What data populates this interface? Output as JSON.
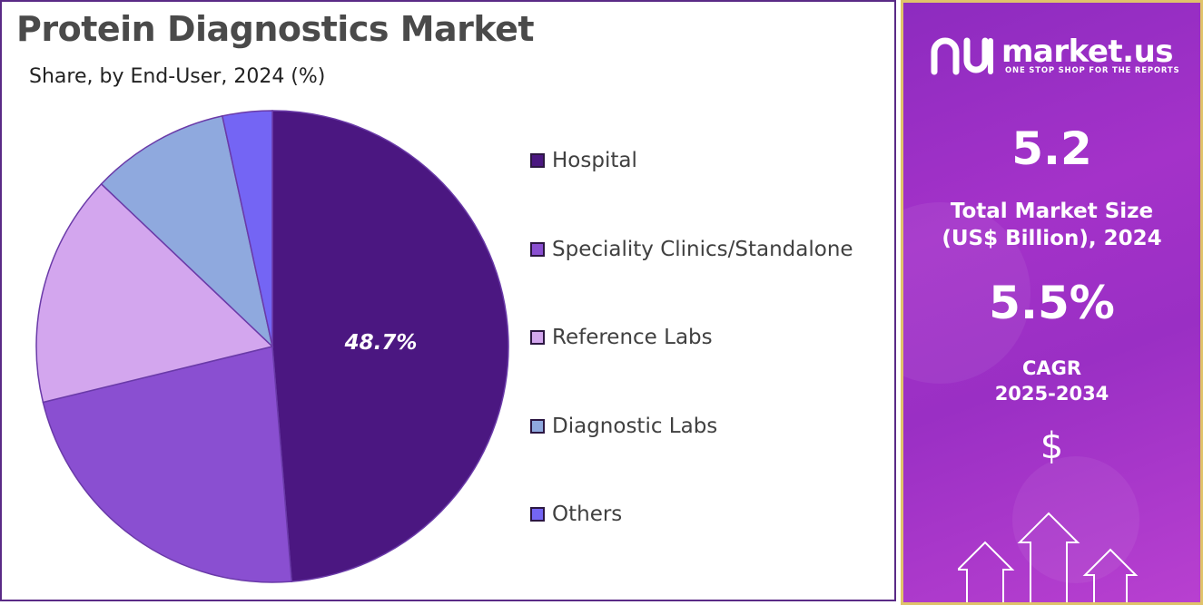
{
  "title": "Protein Diagnostics Market",
  "subtitle": "Share, by End-User, 2024 (%)",
  "chart_data": {
    "type": "pie",
    "title": "Protein Diagnostics Market",
    "subtitle": "Share, by End-User, 2024 (%)",
    "categories": [
      "Hospital",
      "Speciality Clinics/Standalone",
      "Reference Labs",
      "Diagnostic Labs",
      "Others"
    ],
    "values": [
      48.7,
      22.5,
      15.9,
      9.5,
      3.4
    ],
    "colors": [
      "#4b1781",
      "#8a4fd1",
      "#d3a6ee",
      "#8fa9de",
      "#7465f4"
    ],
    "data_labels": [
      "48.7%",
      "",
      "",
      "",
      ""
    ],
    "start_angle_deg": 0,
    "direction": "clockwise",
    "legend_position": "right"
  },
  "legend": [
    {
      "label": "Hospital",
      "color": "#4b1781"
    },
    {
      "label": "Speciality Clinics/Standalone",
      "color": "#8a4fd1"
    },
    {
      "label": "Reference Labs",
      "color": "#d3a6ee"
    },
    {
      "label": "Diagnostic Labs",
      "color": "#8fa9de"
    },
    {
      "label": "Others",
      "color": "#7465f4"
    }
  ],
  "side_panel": {
    "logo_text": "market.us",
    "logo_tagline": "ONE STOP SHOP FOR THE REPORTS",
    "market_size_value": "5.2",
    "market_size_label_1": "Total Market Size",
    "market_size_label_2": "(US$ Billion), 2024",
    "cagr_value": "5.5%",
    "cagr_label_1": "CAGR",
    "cagr_label_2": "2025-2034",
    "currency_symbol": "$",
    "accent_color": "#a432c9",
    "border_color": "#e0c36a"
  }
}
